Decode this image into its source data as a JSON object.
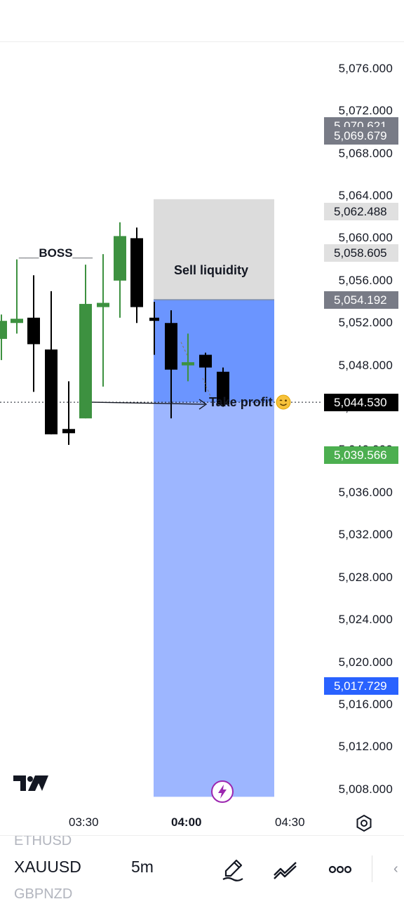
{
  "chart": {
    "symbol": "XAUUSD",
    "interval": "5m",
    "price_ticks": [
      "5,076.000",
      "5,072.000",
      "5,068.000",
      "5,064.000",
      "5,060.000",
      "5,056.000",
      "5,052.000",
      "5,048.000",
      "5,044.000",
      "5,040.000",
      "5,036.000",
      "5,032.000",
      "5,028.000",
      "5,024.000",
      "5,020.000",
      "5,016.000",
      "5,012.000",
      "5,008.000"
    ],
    "price_range": [
      5006,
      5078.5
    ],
    "time_labels": [
      "03:30",
      "04:00",
      "04:30"
    ],
    "current_time_label": "04:00",
    "price_tags": [
      {
        "value": "5,070.621",
        "style": "grey"
      },
      {
        "value": "5,069.679",
        "style": "grey"
      },
      {
        "value": "5,062.488",
        "style": "light"
      },
      {
        "value": "5,058.605",
        "style": "light"
      },
      {
        "value": "5,054.192",
        "style": "grey"
      },
      {
        "value": "5,044.530",
        "style": "black"
      },
      {
        "value": "5,039.566",
        "style": "green"
      },
      {
        "value": "5,017.729",
        "style": "blue"
      }
    ],
    "annotations": {
      "boss": "___BOSS___",
      "sell_liquidity": "Sell liquidity",
      "take_profit": "Take profit"
    },
    "position": {
      "entry": 5054.192,
      "stop": 5062.488,
      "target": 5007.3
    },
    "last_price": 5044.53,
    "colors": {
      "up": "#3d9140",
      "down": "#000000",
      "stop_zone": "#dcdcdc",
      "profit_zone": "#9db6ff",
      "profit_zone_dark": "#6b95ff",
      "tag_blue": "#2962ff",
      "tag_green": "#4caf50",
      "tag_grey": "#787b86"
    },
    "candles": [
      {
        "o": 5050.5,
        "h": 5052.8,
        "l": 5048.5,
        "c": 5052.2
      },
      {
        "o": 5052.0,
        "h": 5058.0,
        "l": 5051.0,
        "c": 5052.4
      },
      {
        "o": 5052.5,
        "h": 5056.5,
        "l": 5045.5,
        "c": 5050.0
      },
      {
        "o": 5049.5,
        "h": 5055.0,
        "l": 5041.5,
        "c": 5041.5
      },
      {
        "o": 5042.0,
        "h": 5046.5,
        "l": 5040.5,
        "c": 5041.6
      },
      {
        "o": 5043.0,
        "h": 5057.5,
        "l": 5043.0,
        "c": 5053.8
      },
      {
        "o": 5053.5,
        "h": 5058.5,
        "l": 5046.0,
        "c": 5053.9
      },
      {
        "o": 5056.0,
        "h": 5061.5,
        "l": 5052.5,
        "c": 5060.2
      },
      {
        "o": 5060.0,
        "h": 5061.0,
        "l": 5052.0,
        "c": 5053.5
      },
      {
        "o": 5052.5,
        "h": 5054.0,
        "l": 5049.0,
        "c": 5052.2
      },
      {
        "o": 5052.0,
        "h": 5053.2,
        "l": 5043.0,
        "c": 5047.6
      },
      {
        "o": 5048.0,
        "h": 5051.0,
        "l": 5046.5,
        "c": 5048.3
      },
      {
        "o": 5049.0,
        "h": 5049.2,
        "l": 5045.5,
        "c": 5047.8
      },
      {
        "o": 5047.4,
        "h": 5047.8,
        "l": 5044.1,
        "c": 5044.3
      }
    ]
  },
  "icons": {
    "logo": "tradingview-logo-icon",
    "bolt": "lightning-bolt-icon",
    "settings": "settings-gear-icon",
    "pen": "pen-draw-icon",
    "indicators": "indicators-icon",
    "more": "more-dots-icon",
    "emoji": "wink-emoji-icon"
  },
  "bottom": {
    "prev_symbol": "ETHUSD",
    "next_symbol": "GBPNZD",
    "edge": "‹"
  }
}
